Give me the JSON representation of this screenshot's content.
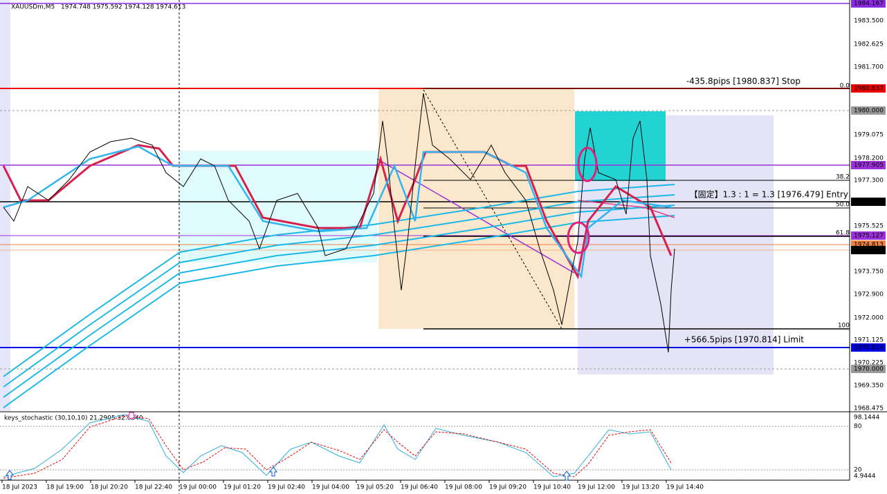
{
  "header": {
    "symbol": "XAUUSDm,M5",
    "ohlc": "1974.748 1975.592 1974.128 1974.613"
  },
  "price_axis": [
    "1984.167",
    "1983.500",
    "1982.625",
    "1981.700",
    "1980.837",
    "1980.000",
    "1979.075",
    "1978.200",
    "1977.905",
    "1977.300",
    "1976.479",
    "1975.525",
    "1975.127",
    "1974.813",
    "1974.613",
    "1973.750",
    "1972.900",
    "1972.000",
    "1971.125",
    "1970.814",
    "1970.225",
    "1970.000",
    "1969.350",
    "1968.475"
  ],
  "indicator_axis": [
    "98.1444",
    "80",
    "20",
    "4.9444"
  ],
  "time_axis": [
    "18 Jul 2023",
    "18 Jul 19:00",
    "18 Jul 20:20",
    "18 Jul 22:40",
    "19 Jul 00:00",
    "19 Jul 01:20",
    "19 Jul 02:40",
    "19 Jul 04:00",
    "19 Jul 05:20",
    "19 Jul 06:40",
    "19 Jul 08:00",
    "19 Jul 09:20",
    "19 Jul 10:40",
    "19 Jul 12:00",
    "19 Jul 13:20",
    "19 Jul 14:40"
  ],
  "annotations": {
    "stop": "-435.8pips [1980.837] Stop",
    "entry": "【固定】1.3 : 1 = 1.3 [1976.479] Entry",
    "limit": "+566.5pips [1970.814] Limit"
  },
  "fib_levels": [
    "0.0",
    "38.2",
    "50.0",
    "61.8",
    "100"
  ],
  "indicator": {
    "label": "keys_stochastic (30,10,10) 21.2905 32.0840"
  }
}
